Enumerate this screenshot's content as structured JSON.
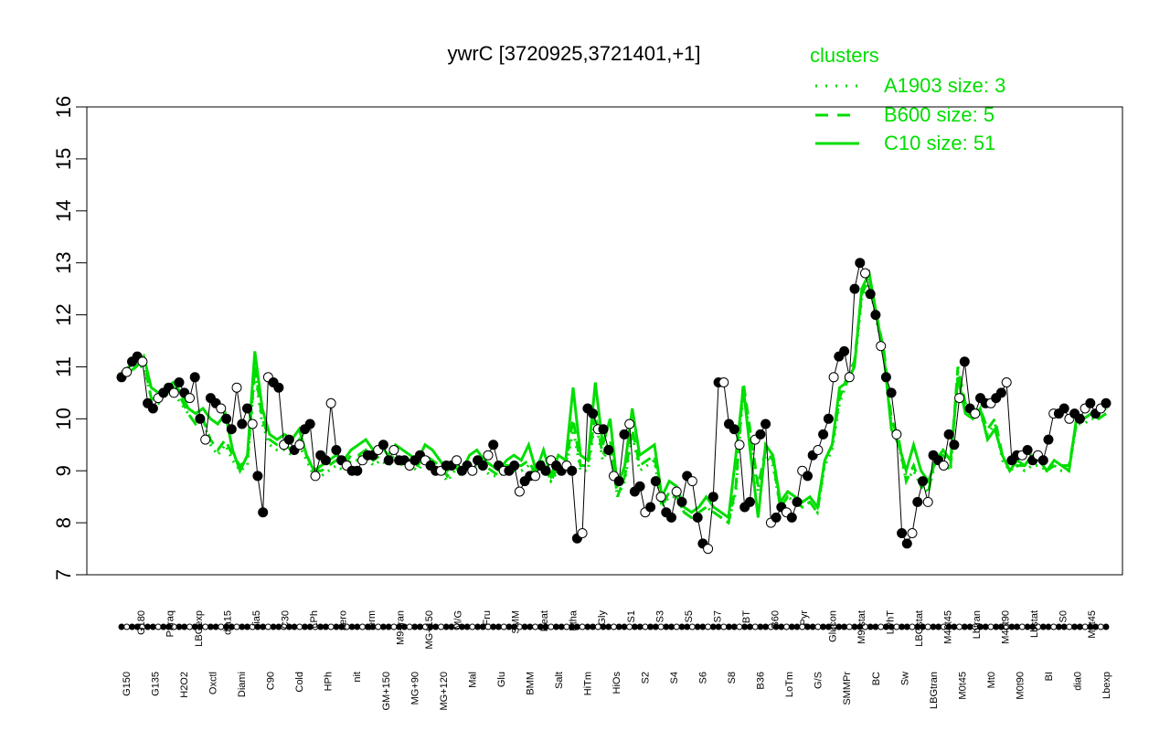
{
  "chart_data": {
    "type": "line",
    "title": "ywrC [3720925,3721401,+1]",
    "xlabel": "",
    "ylabel": "",
    "ylim": [
      7,
      16
    ],
    "yticks": [
      7,
      8,
      9,
      10,
      11,
      12,
      13,
      14,
      15,
      16
    ],
    "xticks_visible": [
      "G150",
      "G180",
      "G135",
      "Paraq",
      "H2O2",
      "LBGexp",
      "Oxctl",
      "dia15",
      "Diami",
      "dia5",
      "C90",
      "C30",
      "Cold",
      "LPh",
      "HPh",
      "aero",
      "nit",
      "ferm",
      "GM+150",
      "M9-tran",
      "MG+90",
      "MG+150",
      "MG+120",
      "M/G",
      "Mal",
      "Fru",
      "Glu",
      "SMM",
      "BMM",
      "Heat",
      "Salt",
      "Etha",
      "HiTm",
      "Gly",
      "HiOs",
      "S1",
      "S2",
      "S3",
      "S4",
      "S5",
      "S6",
      "S7",
      "S8",
      "BT",
      "B36",
      "B60",
      "LoTm",
      "Pyr",
      "G/S",
      "Glucon",
      "SMMPr",
      "M9-stat",
      "BC",
      "LPhT",
      "Sw",
      "LBGstat",
      "LBGtran",
      "M40t45",
      "M0t45",
      "Lbtran",
      "Mt0",
      "M40t90",
      "M0t90",
      "Lbstat",
      "BI",
      "S0",
      "dia0",
      "M0t45",
      "Lbexp"
    ],
    "legend": {
      "title": "clusters",
      "position": "top-right",
      "entries": [
        {
          "label": "A1903 size: 3",
          "style": "dotted"
        },
        {
          "label": "B600 size: 5",
          "style": "dashed"
        },
        {
          "label": "C10 size: 51",
          "style": "solid"
        }
      ]
    },
    "series": [
      {
        "name": "C10 size: 51",
        "role": "cluster-mean",
        "values": [
          10.8,
          10.9,
          11.0,
          11.2,
          10.6,
          10.5,
          10.6,
          10.7,
          10.5,
          10.2,
          10.1,
          10.2,
          10.0,
          9.9,
          10.1,
          9.4,
          9.0,
          9.3,
          11.3,
          10.2,
          9.7,
          9.6,
          9.7,
          9.6,
          9.8,
          9.3,
          9.0,
          9.1,
          9.2,
          9.3,
          9.2,
          9.4,
          9.5,
          9.6,
          9.4,
          9.5,
          9.3,
          9.5,
          9.4,
          9.3,
          9.2,
          9.5,
          9.4,
          9.2,
          9.0,
          9.2,
          9.0,
          9.3,
          9.4,
          9.2,
          9.1,
          9.0,
          9.2,
          9.3,
          9.2,
          9.5,
          9.0,
          9.4,
          8.9,
          9.3,
          9.2,
          10.6,
          9.3,
          9.2,
          10.7,
          9.5,
          10.0,
          8.7,
          9.1,
          10.2,
          9.3,
          9.4,
          9.5,
          8.5,
          8.8,
          8.7,
          8.3,
          8.2,
          8.3,
          8.5,
          8.3,
          8.2,
          8.1,
          9.3,
          10.6,
          9.3,
          8.1,
          9.5,
          9.3,
          8.4,
          8.6,
          8.5,
          8.4,
          8.5,
          8.3,
          9.2,
          9.5,
          10.6,
          10.7,
          11.0,
          12.5,
          12.8,
          12.0,
          11.2,
          9.8,
          9.5,
          9.0,
          9.5,
          9.0,
          8.8,
          9.2,
          9.4,
          9.2,
          10.8,
          10.1,
          10.0,
          10.2,
          9.6,
          9.8,
          9.3,
          9.0,
          9.2,
          9.1,
          9.3,
          9.2,
          9.0,
          9.2,
          9.1,
          9.0,
          10.0,
          10.0,
          10.1,
          10.0,
          10.1
        ]
      },
      {
        "name": "B600 size: 5",
        "role": "cluster-mean",
        "values": [
          10.9,
          11.0,
          11.1,
          11.1,
          10.4,
          10.3,
          10.6,
          10.6,
          10.4,
          10.1,
          9.9,
          10.0,
          9.6,
          9.4,
          9.6,
          9.3,
          9.1,
          9.2,
          11.0,
          10.0,
          9.6,
          9.5,
          9.5,
          9.4,
          9.6,
          9.3,
          9.0,
          9.0,
          9.1,
          9.2,
          9.1,
          9.3,
          9.3,
          9.4,
          9.2,
          9.3,
          9.2,
          9.3,
          9.2,
          9.2,
          9.1,
          9.3,
          9.2,
          9.1,
          8.9,
          9.1,
          8.9,
          9.2,
          9.2,
          9.1,
          9.0,
          8.9,
          9.1,
          9.1,
          9.1,
          9.2,
          8.9,
          9.2,
          8.8,
          9.1,
          9.1,
          10.0,
          9.1,
          9.1,
          10.1,
          9.3,
          9.6,
          8.5,
          8.9,
          9.8,
          9.1,
          9.2,
          9.3,
          8.3,
          8.6,
          8.5,
          8.2,
          8.1,
          8.2,
          8.3,
          8.2,
          8.1,
          8.0,
          8.7,
          10.7,
          9.7,
          8.7,
          9.4,
          9.2,
          8.3,
          8.5,
          8.4,
          8.3,
          8.4,
          8.2,
          9.2,
          9.5,
          10.4,
          10.8,
          11.1,
          12.4,
          12.7,
          12.0,
          11.3,
          10.0,
          9.6,
          8.8,
          9.1,
          8.7,
          8.6,
          9.3,
          9.3,
          9.1,
          11.0,
          10.3,
          10.1,
          10.2,
          9.8,
          10.0,
          9.3,
          9.0,
          9.1,
          9.1,
          9.2,
          9.2,
          9.0,
          9.1,
          9.1,
          9.1,
          9.9,
          10.0,
          10.1,
          10.1,
          10.2
        ]
      },
      {
        "name": "A1903 size: 3",
        "role": "cluster-mean",
        "values": [
          10.8,
          10.9,
          11.0,
          11.0,
          10.4,
          10.3,
          10.5,
          10.5,
          10.3,
          10.1,
          9.9,
          10.0,
          9.5,
          9.3,
          9.5,
          9.2,
          9.0,
          9.1,
          10.9,
          9.9,
          9.5,
          9.4,
          9.4,
          9.3,
          9.5,
          9.2,
          8.9,
          8.9,
          9.0,
          9.1,
          9.0,
          9.2,
          9.2,
          9.3,
          9.1,
          9.2,
          9.1,
          9.2,
          9.1,
          9.1,
          9.0,
          9.2,
          9.1,
          9.0,
          8.8,
          9.0,
          8.9,
          9.1,
          9.1,
          9.0,
          8.9,
          8.9,
          9.0,
          9.0,
          9.0,
          9.1,
          8.9,
          9.1,
          8.8,
          9.0,
          9.0,
          9.8,
          9.0,
          9.0,
          10.0,
          9.2,
          9.5,
          8.5,
          8.8,
          9.7,
          9.0,
          9.1,
          9.2,
          8.3,
          8.5,
          8.5,
          8.2,
          8.1,
          8.2,
          8.3,
          8.2,
          8.1,
          8.0,
          8.6,
          10.6,
          9.6,
          8.6,
          9.3,
          9.1,
          8.3,
          8.5,
          8.4,
          8.3,
          8.4,
          8.2,
          9.1,
          9.4,
          10.3,
          10.7,
          11.0,
          12.3,
          12.6,
          11.9,
          11.2,
          9.9,
          9.5,
          8.8,
          9.0,
          8.7,
          8.6,
          9.2,
          9.2,
          9.0,
          10.9,
          10.2,
          10.0,
          10.1,
          9.7,
          9.9,
          9.2,
          9.0,
          9.1,
          9.0,
          9.1,
          9.1,
          9.0,
          9.1,
          9.0,
          9.0,
          9.9,
          9.9,
          10.0,
          10.0,
          10.1
        ]
      },
      {
        "name": "",
        "role": "gene-profile",
        "values": [
          10.8,
          10.9,
          11.1,
          11.2,
          11.1,
          10.3,
          10.2,
          10.4,
          10.5,
          10.6,
          10.5,
          10.7,
          10.5,
          10.4,
          10.8,
          10.0,
          9.6,
          10.4,
          10.3,
          10.2,
          10.0,
          9.8,
          10.6,
          9.9,
          10.2,
          9.9,
          8.9,
          8.2,
          10.8,
          10.7,
          10.6,
          9.5,
          9.6,
          9.4,
          9.5,
          9.8,
          9.9,
          8.9,
          9.3,
          9.2,
          10.3,
          9.4,
          9.2,
          9.1,
          9.0,
          9.0,
          9.2,
          9.3,
          9.3,
          9.4,
          9.5,
          9.2,
          9.4,
          9.2,
          9.2,
          9.1,
          9.2,
          9.3,
          9.2,
          9.1,
          9.0,
          9.0,
          9.1,
          9.1,
          9.2,
          9.0,
          9.1,
          9.0,
          9.2,
          9.1,
          9.3,
          9.5,
          9.1,
          9.0,
          9.0,
          9.1,
          8.6,
          8.8,
          8.9,
          8.9,
          9.1,
          9.0,
          9.2,
          9.1,
          9.0,
          9.1,
          9.0,
          7.7,
          7.8,
          10.2,
          10.1,
          9.8,
          9.8,
          9.4,
          8.9,
          8.8,
          9.7,
          9.9,
          8.6,
          8.7,
          8.2,
          8.3,
          8.8,
          8.5,
          8.2,
          8.1,
          8.6,
          8.4,
          8.9,
          8.8,
          8.1,
          7.6,
          7.5,
          8.5,
          10.7,
          10.7,
          9.9,
          9.8,
          9.5,
          8.3,
          8.4,
          9.6,
          9.7,
          9.9,
          8.0,
          8.1,
          8.3,
          8.2,
          8.1,
          8.4,
          9.0,
          8.9,
          9.3,
          9.4,
          9.7,
          10.0,
          10.8,
          11.2,
          11.3,
          10.8,
          12.5,
          13.0,
          12.8,
          12.4,
          12.0,
          11.4,
          10.8,
          10.5,
          9.7,
          7.8,
          7.6,
          7.8,
          8.4,
          8.8,
          8.4,
          9.3,
          9.2,
          9.1,
          9.7,
          9.5,
          10.4,
          11.1,
          10.2,
          10.1,
          10.4,
          10.3,
          10.3,
          10.4,
          10.5,
          10.7,
          9.2,
          9.3,
          9.3,
          9.4,
          9.2,
          9.3,
          9.2,
          9.6,
          10.1,
          10.1,
          10.2,
          10.0,
          10.1,
          10.0,
          10.2,
          10.3,
          10.1,
          10.2,
          10.3
        ]
      }
    ]
  }
}
